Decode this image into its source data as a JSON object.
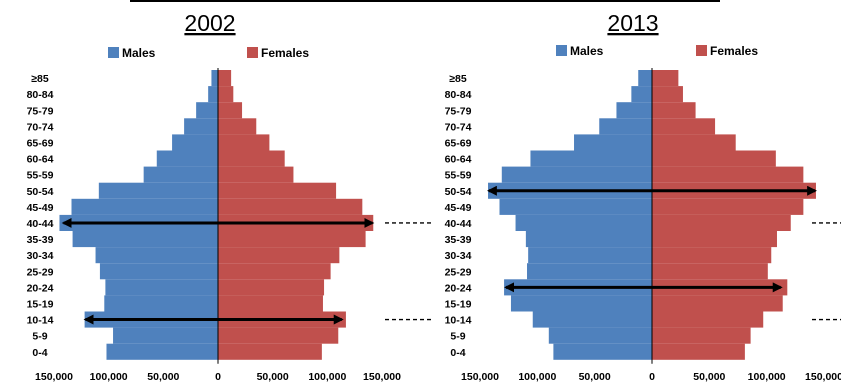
{
  "colors": {
    "males": "#4f81bd",
    "females": "#c0504d",
    "arrow": "#000000",
    "axis": "#000000"
  },
  "chart_data": [
    {
      "type": "bar",
      "title": "2002",
      "orientation": "horizontal-pyramid",
      "categories": [
        "0-4",
        "5-9",
        "10-14",
        "15-19",
        "20-24",
        "25-29",
        "30-34",
        "35-39",
        "40-44",
        "45-49",
        "50-54",
        "55-59",
        "60-64",
        "65-69",
        "70-74",
        "75-79",
        "80-84",
        "≥85"
      ],
      "series": [
        {
          "name": "Males",
          "values": [
            102000,
            96000,
            122000,
            104000,
            103000,
            108000,
            112000,
            133000,
            145000,
            134000,
            109000,
            68000,
            56000,
            42000,
            31000,
            20000,
            9000,
            6000
          ]
        },
        {
          "name": "Females",
          "values": [
            95000,
            110000,
            117000,
            96000,
            97000,
            103000,
            111000,
            135000,
            142000,
            132000,
            108000,
            69000,
            61000,
            47000,
            35000,
            22000,
            14000,
            12000
          ]
        }
      ],
      "xlim": [
        -150000,
        150000
      ],
      "xticks": [
        -150000,
        -100000,
        -50000,
        0,
        50000,
        100000,
        150000
      ],
      "xtick_labels": [
        "150,000",
        "100,000",
        "50,000",
        "0",
        "50,000",
        "100,000",
        "150,000"
      ],
      "legend": [
        "Males",
        "Females"
      ],
      "legend_position": "top",
      "annotations": [
        {
          "type": "double-arrow",
          "category": "40-44",
          "from": -143000,
          "to": 143000
        },
        {
          "type": "double-arrow",
          "category": "10-14",
          "from": -123000,
          "to": 115000
        },
        {
          "type": "dashed-line",
          "category": "40-44"
        },
        {
          "type": "dashed-line",
          "category": "10-14"
        }
      ]
    },
    {
      "type": "bar",
      "title": "2013",
      "orientation": "horizontal-pyramid",
      "categories": [
        "0-4",
        "5-9",
        "10-14",
        "15-19",
        "20-24",
        "25-29",
        "30-34",
        "35-39",
        "40-44",
        "45-49",
        "50-54",
        "55-59",
        "60-64",
        "65-69",
        "70-74",
        "75-79",
        "80-84",
        "≥85"
      ],
      "series": [
        {
          "name": "Males",
          "values": [
            86000,
            90000,
            104000,
            123000,
            129000,
            109000,
            108000,
            110000,
            119000,
            133000,
            143000,
            131000,
            106000,
            68000,
            46000,
            31000,
            18000,
            12000
          ]
        },
        {
          "name": "Females",
          "values": [
            81000,
            86000,
            97000,
            114000,
            118000,
            101000,
            104000,
            109000,
            121000,
            132000,
            143000,
            132000,
            108000,
            73000,
            55000,
            38000,
            27000,
            23000
          ]
        }
      ],
      "xlim": [
        -150000,
        150000
      ],
      "xticks": [
        -150000,
        -100000,
        -50000,
        0,
        50000,
        100000,
        150000
      ],
      "xtick_labels": [
        "150,000",
        "100,000",
        "50,000",
        "0",
        "50,000",
        "100,000",
        "150,000"
      ],
      "legend": [
        "Males",
        "Females"
      ],
      "legend_position": "top",
      "annotations": [
        {
          "type": "double-arrow",
          "category": "50-54",
          "from": -144000,
          "to": 144000
        },
        {
          "type": "double-arrow",
          "category": "20-24",
          "from": -129000,
          "to": 114000
        },
        {
          "type": "dashed-line",
          "category": "40-44"
        },
        {
          "type": "dashed-line",
          "category": "10-14"
        }
      ]
    }
  ]
}
